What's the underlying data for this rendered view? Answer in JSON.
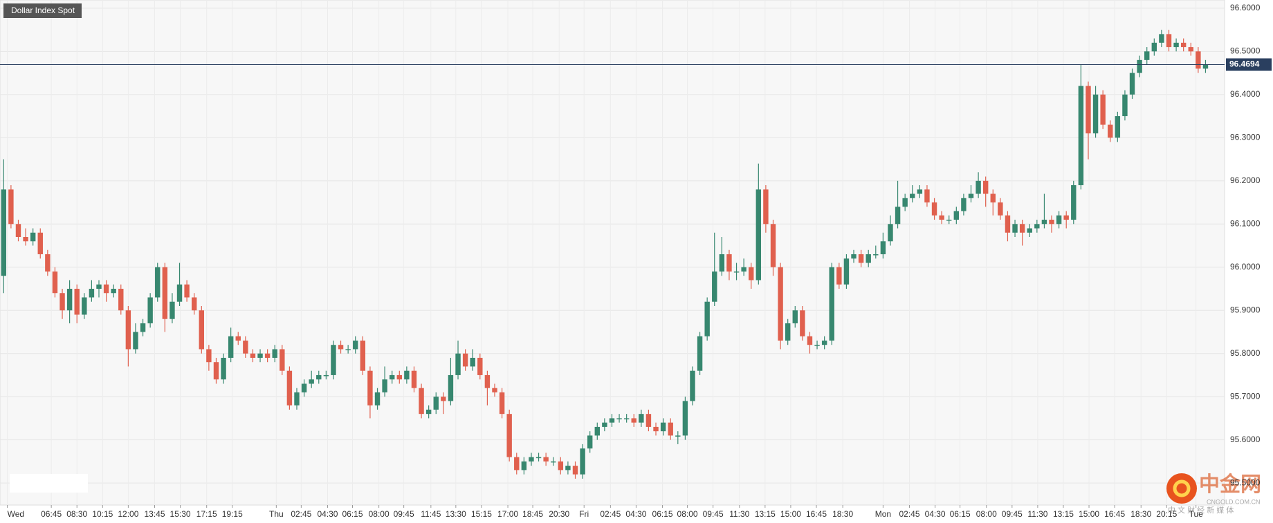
{
  "chart_data": {
    "type": "candlestick",
    "title": "Dollar Index Spot",
    "open": [
      95.98,
      96.18,
      96.1,
      96.07,
      96.06,
      96.08,
      96.03,
      95.99,
      95.94,
      95.9,
      95.95,
      95.89,
      95.93,
      95.95,
      95.96,
      95.94,
      95.95,
      95.9,
      95.81,
      95.85,
      95.87,
      95.93,
      96.0,
      95.88,
      95.92,
      95.96,
      95.93,
      95.9,
      95.81,
      95.78,
      95.74,
      95.79,
      95.84,
      95.83,
      95.8,
      95.79,
      95.8,
      95.79,
      95.81,
      95.76,
      95.68,
      95.71,
      95.73,
      95.74,
      95.75,
      95.75,
      95.82,
      95.81,
      95.81,
      95.83,
      95.76,
      95.68,
      95.71,
      95.74,
      95.75,
      95.74,
      95.76,
      95.72,
      95.66,
      95.67,
      95.7,
      95.69,
      95.75,
      95.8,
      95.77,
      95.79,
      95.75,
      95.72,
      95.71,
      95.66,
      95.56,
      95.53,
      95.55,
      95.56,
      95.56,
      95.55,
      95.55,
      95.53,
      95.54,
      95.52,
      95.58,
      95.61,
      95.63,
      95.64,
      95.65,
      95.65,
      95.65,
      95.64,
      95.66,
      95.63,
      95.62,
      95.64,
      95.61,
      95.61,
      95.69,
      95.76,
      95.84,
      95.92,
      95.99,
      96.03,
      95.99,
      95.99,
      96.0,
      95.97,
      96.18,
      96.1,
      96.0,
      95.83,
      95.87,
      95.9,
      95.84,
      95.82,
      95.82,
      95.83,
      96.0,
      95.96,
      96.02,
      96.03,
      96.01,
      96.03,
      96.03,
      96.06,
      96.1,
      96.14,
      96.16,
      96.17,
      96.18,
      96.15,
      96.12,
      96.11,
      96.11,
      96.13,
      96.16,
      96.17,
      96.2,
      96.17,
      96.15,
      96.12,
      96.08,
      96.1,
      96.08,
      96.09,
      96.1,
      96.11,
      96.1,
      96.12,
      96.11,
      96.19,
      96.42,
      96.31,
      96.4,
      96.33,
      96.3,
      96.35,
      96.4,
      96.45,
      96.48,
      96.5,
      96.52,
      96.54,
      96.51,
      96.52,
      96.51,
      96.5,
      96.46
    ],
    "high": [
      96.25,
      96.19,
      96.11,
      96.09,
      96.09,
      96.09,
      96.04,
      96.0,
      95.95,
      95.97,
      95.96,
      95.94,
      95.97,
      95.97,
      95.97,
      95.96,
      95.96,
      95.91,
      95.87,
      95.88,
      95.94,
      96.01,
      96.01,
      95.94,
      96.01,
      95.97,
      95.94,
      95.91,
      95.82,
      95.79,
      95.8,
      95.86,
      95.85,
      95.84,
      95.81,
      95.81,
      95.81,
      95.82,
      95.82,
      95.77,
      95.72,
      95.74,
      95.76,
      95.76,
      95.76,
      95.83,
      95.83,
      95.82,
      95.84,
      95.84,
      95.77,
      95.72,
      95.77,
      95.76,
      95.76,
      95.77,
      95.77,
      95.73,
      95.68,
      95.71,
      95.71,
      95.79,
      95.83,
      95.81,
      95.81,
      95.8,
      95.76,
      95.73,
      95.72,
      95.67,
      95.57,
      95.56,
      95.57,
      95.57,
      95.57,
      95.56,
      95.56,
      95.55,
      95.55,
      95.59,
      95.62,
      95.64,
      95.65,
      95.66,
      95.66,
      95.66,
      95.66,
      95.67,
      95.67,
      95.64,
      95.65,
      95.65,
      95.62,
      95.7,
      95.77,
      95.85,
      95.93,
      96.08,
      96.07,
      96.04,
      96.01,
      96.02,
      96.01,
      96.24,
      96.19,
      96.11,
      96.01,
      95.88,
      95.91,
      95.91,
      95.85,
      95.83,
      95.84,
      96.01,
      96.01,
      96.03,
      96.04,
      96.04,
      96.04,
      96.05,
      96.08,
      96.12,
      96.2,
      96.17,
      96.19,
      96.19,
      96.19,
      96.16,
      96.13,
      96.12,
      96.14,
      96.17,
      96.19,
      96.22,
      96.21,
      96.18,
      96.16,
      96.13,
      96.11,
      96.11,
      96.1,
      96.11,
      96.17,
      96.12,
      96.13,
      96.13,
      96.2,
      96.47,
      96.43,
      96.42,
      96.41,
      96.34,
      96.36,
      96.41,
      96.46,
      96.49,
      96.51,
      96.53,
      96.55,
      96.55,
      96.53,
      96.53,
      96.52,
      96.51,
      96.48
    ],
    "low": [
      95.94,
      96.09,
      96.06,
      96.05,
      96.05,
      96.02,
      95.98,
      95.93,
      95.88,
      95.87,
      95.87,
      95.88,
      95.92,
      95.93,
      95.92,
      95.93,
      95.89,
      95.77,
      95.8,
      95.84,
      95.86,
      95.92,
      95.85,
      95.87,
      95.91,
      95.92,
      95.89,
      95.8,
      95.76,
      95.73,
      95.73,
      95.78,
      95.82,
      95.79,
      95.78,
      95.78,
      95.78,
      95.78,
      95.75,
      95.67,
      95.67,
      95.7,
      95.72,
      95.73,
      95.74,
      95.74,
      95.8,
      95.8,
      95.8,
      95.75,
      95.65,
      95.67,
      95.7,
      95.73,
      95.73,
      95.73,
      95.71,
      95.65,
      95.65,
      95.66,
      95.66,
      95.68,
      95.74,
      95.76,
      95.76,
      95.74,
      95.68,
      95.7,
      95.65,
      95.55,
      95.52,
      95.52,
      95.54,
      95.55,
      95.54,
      95.54,
      95.52,
      95.52,
      95.51,
      95.51,
      95.57,
      95.6,
      95.62,
      95.63,
      95.64,
      95.64,
      95.63,
      95.63,
      95.62,
      95.61,
      95.61,
      95.6,
      95.59,
      95.6,
      95.68,
      95.75,
      95.83,
      95.91,
      95.98,
      95.97,
      95.97,
      95.98,
      95.95,
      95.96,
      96.08,
      95.98,
      95.81,
      95.82,
      95.86,
      95.83,
      95.8,
      95.81,
      95.81,
      95.82,
      95.95,
      95.95,
      96.01,
      96.0,
      96.0,
      96.02,
      96.02,
      96.05,
      96.09,
      96.13,
      96.15,
      96.16,
      96.14,
      96.11,
      96.1,
      96.1,
      96.1,
      96.12,
      96.15,
      96.16,
      96.14,
      96.12,
      96.11,
      96.06,
      96.07,
      96.05,
      96.07,
      96.08,
      96.09,
      96.08,
      96.09,
      96.09,
      96.1,
      96.18,
      96.25,
      96.3,
      96.32,
      96.29,
      96.29,
      96.34,
      96.39,
      96.44,
      96.47,
      96.49,
      96.51,
      96.5,
      96.5,
      96.5,
      96.49,
      96.45,
      96.45
    ],
    "close": [
      96.18,
      96.1,
      96.07,
      96.06,
      96.08,
      96.03,
      95.99,
      95.94,
      95.9,
      95.95,
      95.89,
      95.93,
      95.95,
      95.96,
      95.94,
      95.95,
      95.9,
      95.81,
      95.85,
      95.87,
      95.93,
      96.0,
      95.88,
      95.92,
      95.96,
      95.93,
      95.9,
      95.81,
      95.78,
      95.74,
      95.79,
      95.84,
      95.83,
      95.8,
      95.79,
      95.8,
      95.79,
      95.81,
      95.76,
      95.68,
      95.71,
      95.73,
      95.74,
      95.75,
      95.75,
      95.82,
      95.81,
      95.81,
      95.83,
      95.76,
      95.68,
      95.71,
      95.74,
      95.75,
      95.74,
      95.76,
      95.72,
      95.66,
      95.67,
      95.7,
      95.69,
      95.75,
      95.8,
      95.77,
      95.79,
      95.75,
      95.72,
      95.71,
      95.66,
      95.56,
      95.53,
      95.55,
      95.56,
      95.56,
      95.55,
      95.55,
      95.53,
      95.54,
      95.52,
      95.58,
      95.61,
      95.63,
      95.64,
      95.65,
      95.65,
      95.65,
      95.64,
      95.66,
      95.63,
      95.62,
      95.64,
      95.61,
      95.61,
      95.69,
      95.76,
      95.84,
      95.92,
      95.99,
      96.03,
      95.99,
      95.99,
      96.0,
      95.97,
      96.18,
      96.1,
      96.0,
      95.83,
      95.87,
      95.9,
      95.84,
      95.82,
      95.82,
      95.83,
      96.0,
      95.96,
      96.02,
      96.03,
      96.01,
      96.03,
      96.03,
      96.06,
      96.1,
      96.14,
      96.16,
      96.17,
      96.18,
      96.15,
      96.12,
      96.11,
      96.11,
      96.13,
      96.16,
      96.17,
      96.2,
      96.17,
      96.15,
      96.12,
      96.08,
      96.1,
      96.08,
      96.09,
      96.1,
      96.11,
      96.1,
      96.12,
      96.11,
      96.19,
      96.42,
      96.31,
      96.4,
      96.33,
      96.3,
      96.35,
      96.4,
      96.45,
      96.48,
      96.5,
      96.52,
      96.54,
      96.51,
      96.52,
      96.51,
      96.5,
      96.46,
      96.47
    ],
    "up_color": "#37876f",
    "down_color": "#e0604e",
    "xlim": [
      0,
      167.1
    ],
    "xticks": [
      {
        "value": 1.0,
        "label": "Wed"
      },
      {
        "value": 7.0,
        "label": "06:45"
      },
      {
        "value": 10.5,
        "label": "08:30"
      },
      {
        "value": 14.0,
        "label": "10:15"
      },
      {
        "value": 17.5,
        "label": "12:00"
      },
      {
        "value": 21.1,
        "label": "13:45"
      },
      {
        "value": 24.6,
        "label": "15:30"
      },
      {
        "value": 28.2,
        "label": "17:15"
      },
      {
        "value": 31.7,
        "label": "19:15"
      },
      {
        "value": 37.7,
        "label": "Thu"
      },
      {
        "value": 41.1,
        "label": "02:45"
      },
      {
        "value": 44.7,
        "label": "04:30"
      },
      {
        "value": 48.1,
        "label": "06:15"
      },
      {
        "value": 51.7,
        "label": "08:00"
      },
      {
        "value": 55.1,
        "label": "09:45"
      },
      {
        "value": 58.8,
        "label": "11:45"
      },
      {
        "value": 62.2,
        "label": "13:30"
      },
      {
        "value": 65.7,
        "label": "15:15"
      },
      {
        "value": 69.3,
        "label": "17:00"
      },
      {
        "value": 72.7,
        "label": "18:45"
      },
      {
        "value": 76.3,
        "label": "20:30"
      },
      {
        "value": 79.7,
        "label": "Fri"
      },
      {
        "value": 83.3,
        "label": "02:45"
      },
      {
        "value": 86.8,
        "label": "04:30"
      },
      {
        "value": 90.4,
        "label": "06:15"
      },
      {
        "value": 93.8,
        "label": "08:00"
      },
      {
        "value": 97.3,
        "label": "09:45"
      },
      {
        "value": 100.9,
        "label": "11:30"
      },
      {
        "value": 104.4,
        "label": "13:15"
      },
      {
        "value": 107.9,
        "label": "15:00"
      },
      {
        "value": 111.4,
        "label": "16:45"
      },
      {
        "value": 115.0,
        "label": "18:30"
      },
      {
        "value": 120.5,
        "label": "Mon"
      },
      {
        "value": 124.1,
        "label": "02:45"
      },
      {
        "value": 127.6,
        "label": "04:30"
      },
      {
        "value": 131.0,
        "label": "06:15"
      },
      {
        "value": 134.6,
        "label": "08:00"
      },
      {
        "value": 138.1,
        "label": "09:45"
      },
      {
        "value": 141.6,
        "label": "11:30"
      },
      {
        "value": 145.1,
        "label": "13:15"
      },
      {
        "value": 148.6,
        "label": "15:00"
      },
      {
        "value": 152.1,
        "label": "16:45"
      },
      {
        "value": 155.7,
        "label": "18:30"
      },
      {
        "value": 159.2,
        "label": "20:15"
      },
      {
        "value": 163.2,
        "label": "Tue"
      }
    ],
    "ylim": [
      95.449,
      96.619
    ],
    "yticks": [
      {
        "value": 95.5,
        "label": "95.5000"
      },
      {
        "value": 95.6,
        "label": "95.6000"
      },
      {
        "value": 95.7,
        "label": "95.7000"
      },
      {
        "value": 95.8,
        "label": "95.8000"
      },
      {
        "value": 95.9,
        "label": "95.9000"
      },
      {
        "value": 96.0,
        "label": "96.0000"
      },
      {
        "value": 96.1,
        "label": "96.1000"
      },
      {
        "value": 96.2,
        "label": "96.2000"
      },
      {
        "value": 96.3,
        "label": "96.3000"
      },
      {
        "value": 96.4,
        "label": "96.4000"
      },
      {
        "value": 96.5,
        "label": "96.5000"
      },
      {
        "value": 96.6,
        "label": "96.6000"
      }
    ],
    "grid": true,
    "price_line": {
      "value": 96.4694,
      "label": "96.4694",
      "color": "#2a3f5f"
    },
    "watermark": {
      "name": "中金网",
      "url": "CNGOLD.COM.CN",
      "tagline": "中 文 财 经 新 媒 体"
    }
  }
}
